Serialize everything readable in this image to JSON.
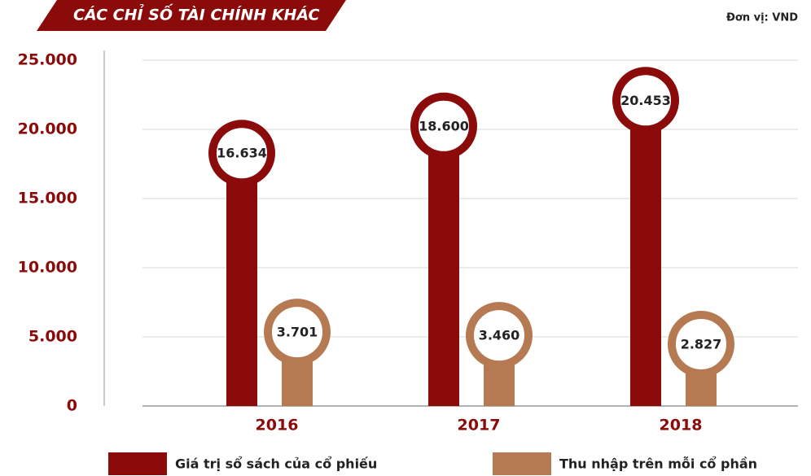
{
  "chart_data": {
    "type": "bar",
    "title": "CÁC CHỈ SỐ TÀI CHÍNH KHÁC",
    "unit_note": "Đơn vị: VND",
    "categories": [
      "2016",
      "2017",
      "2018"
    ],
    "series": [
      {
        "name": "Giá trị sổ sách của cổ phiếu",
        "color": "#8b0a0a",
        "values": [
          16634,
          18600,
          20453
        ],
        "value_labels": [
          "16.634",
          "18.600",
          "20.453"
        ]
      },
      {
        "name": "Thu nhập trên mỗi cổ phần",
        "color": "#b67a52",
        "values": [
          3701,
          3460,
          2827
        ],
        "value_labels": [
          "3.701",
          "3.460",
          "2.827"
        ]
      }
    ],
    "ylim": [
      0,
      25000
    ],
    "yticks": [
      0,
      {
        "value": 5000,
        "label": "5.000"
      },
      {
        "value": 10000,
        "label": "10.000"
      },
      {
        "value": 15000,
        "label": "15.000"
      },
      {
        "value": 20000,
        "label": "20.000"
      },
      {
        "value": 25000,
        "label": "25.000"
      }
    ],
    "grid": true,
    "legend": "bottom"
  }
}
